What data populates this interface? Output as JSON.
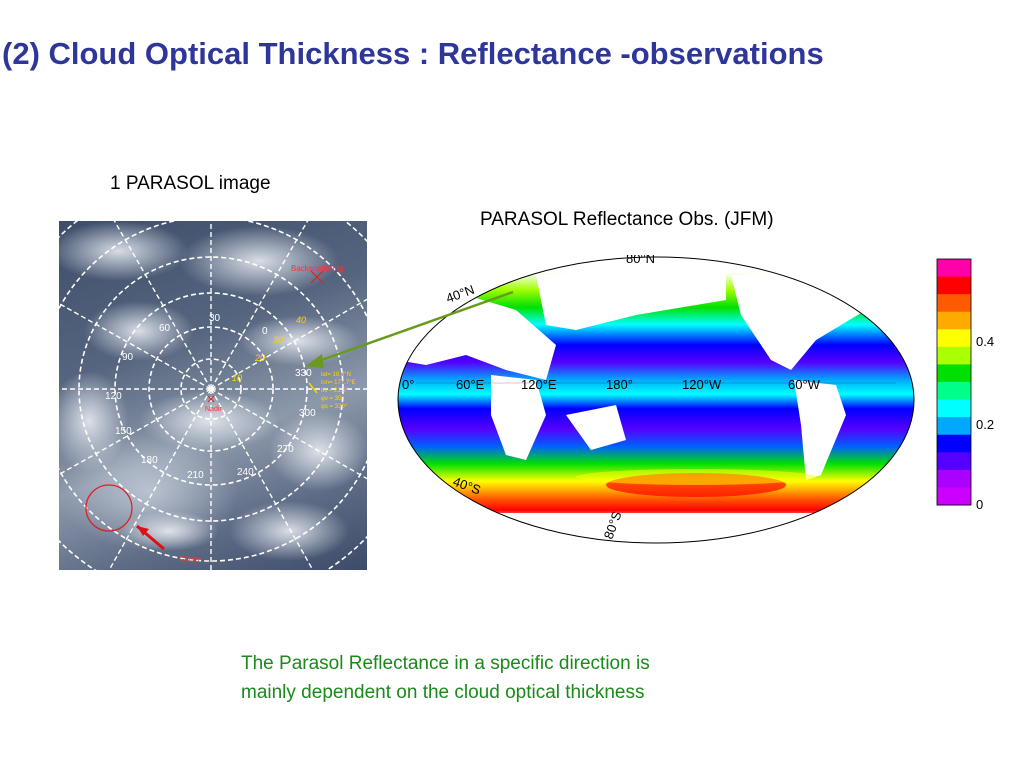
{
  "slide": {
    "title": "(2) Cloud Optical Thickness : Reflectance -observations",
    "left_label": "1 PARASOL image",
    "right_label": "PARASOL Reflectance Obs. (JFM)",
    "caption_line1": "The Parasol Reflectance in a specific direction is",
    "caption_line2": "mainly dependent on the cloud optical thickness"
  },
  "satellite_image": {
    "backscatter_label": "Backscattering",
    "glint_label": "Glitter",
    "nadir_label": "Nadir",
    "azimuth_labels": [
      "0",
      "30",
      "60",
      "90",
      "120",
      "150",
      "180",
      "210",
      "240",
      "270",
      "300",
      "330"
    ],
    "zenith_labels": [
      "10",
      "20",
      "30",
      "40"
    ],
    "info_lines": [
      "lat= 18.8°N",
      "lon= 177.7°E",
      "θs = 21.5°",
      "φv = 30°",
      "φs = 320°"
    ]
  },
  "map": {
    "lat_labels": [
      "40°N",
      "80°N",
      "40°S",
      "80°S"
    ],
    "lon_labels": [
      "0°",
      "60°E",
      "120°E",
      "180°",
      "120°W",
      "60°W"
    ]
  },
  "colorbar": {
    "tick_labels": [
      "0.4",
      "0.2",
      "0"
    ],
    "colors": [
      "#ff00aa",
      "#ff0000",
      "#ff5a00",
      "#ffaa00",
      "#ffff00",
      "#aaff00",
      "#00e000",
      "#00ff88",
      "#00ffff",
      "#00a8ff",
      "#0000ff",
      "#5500ff",
      "#aa00ff",
      "#cc00ff"
    ]
  },
  "colors": {
    "title": "#2f3699",
    "caption": "#1a8a1a",
    "arrow": "#6a9a1a"
  }
}
